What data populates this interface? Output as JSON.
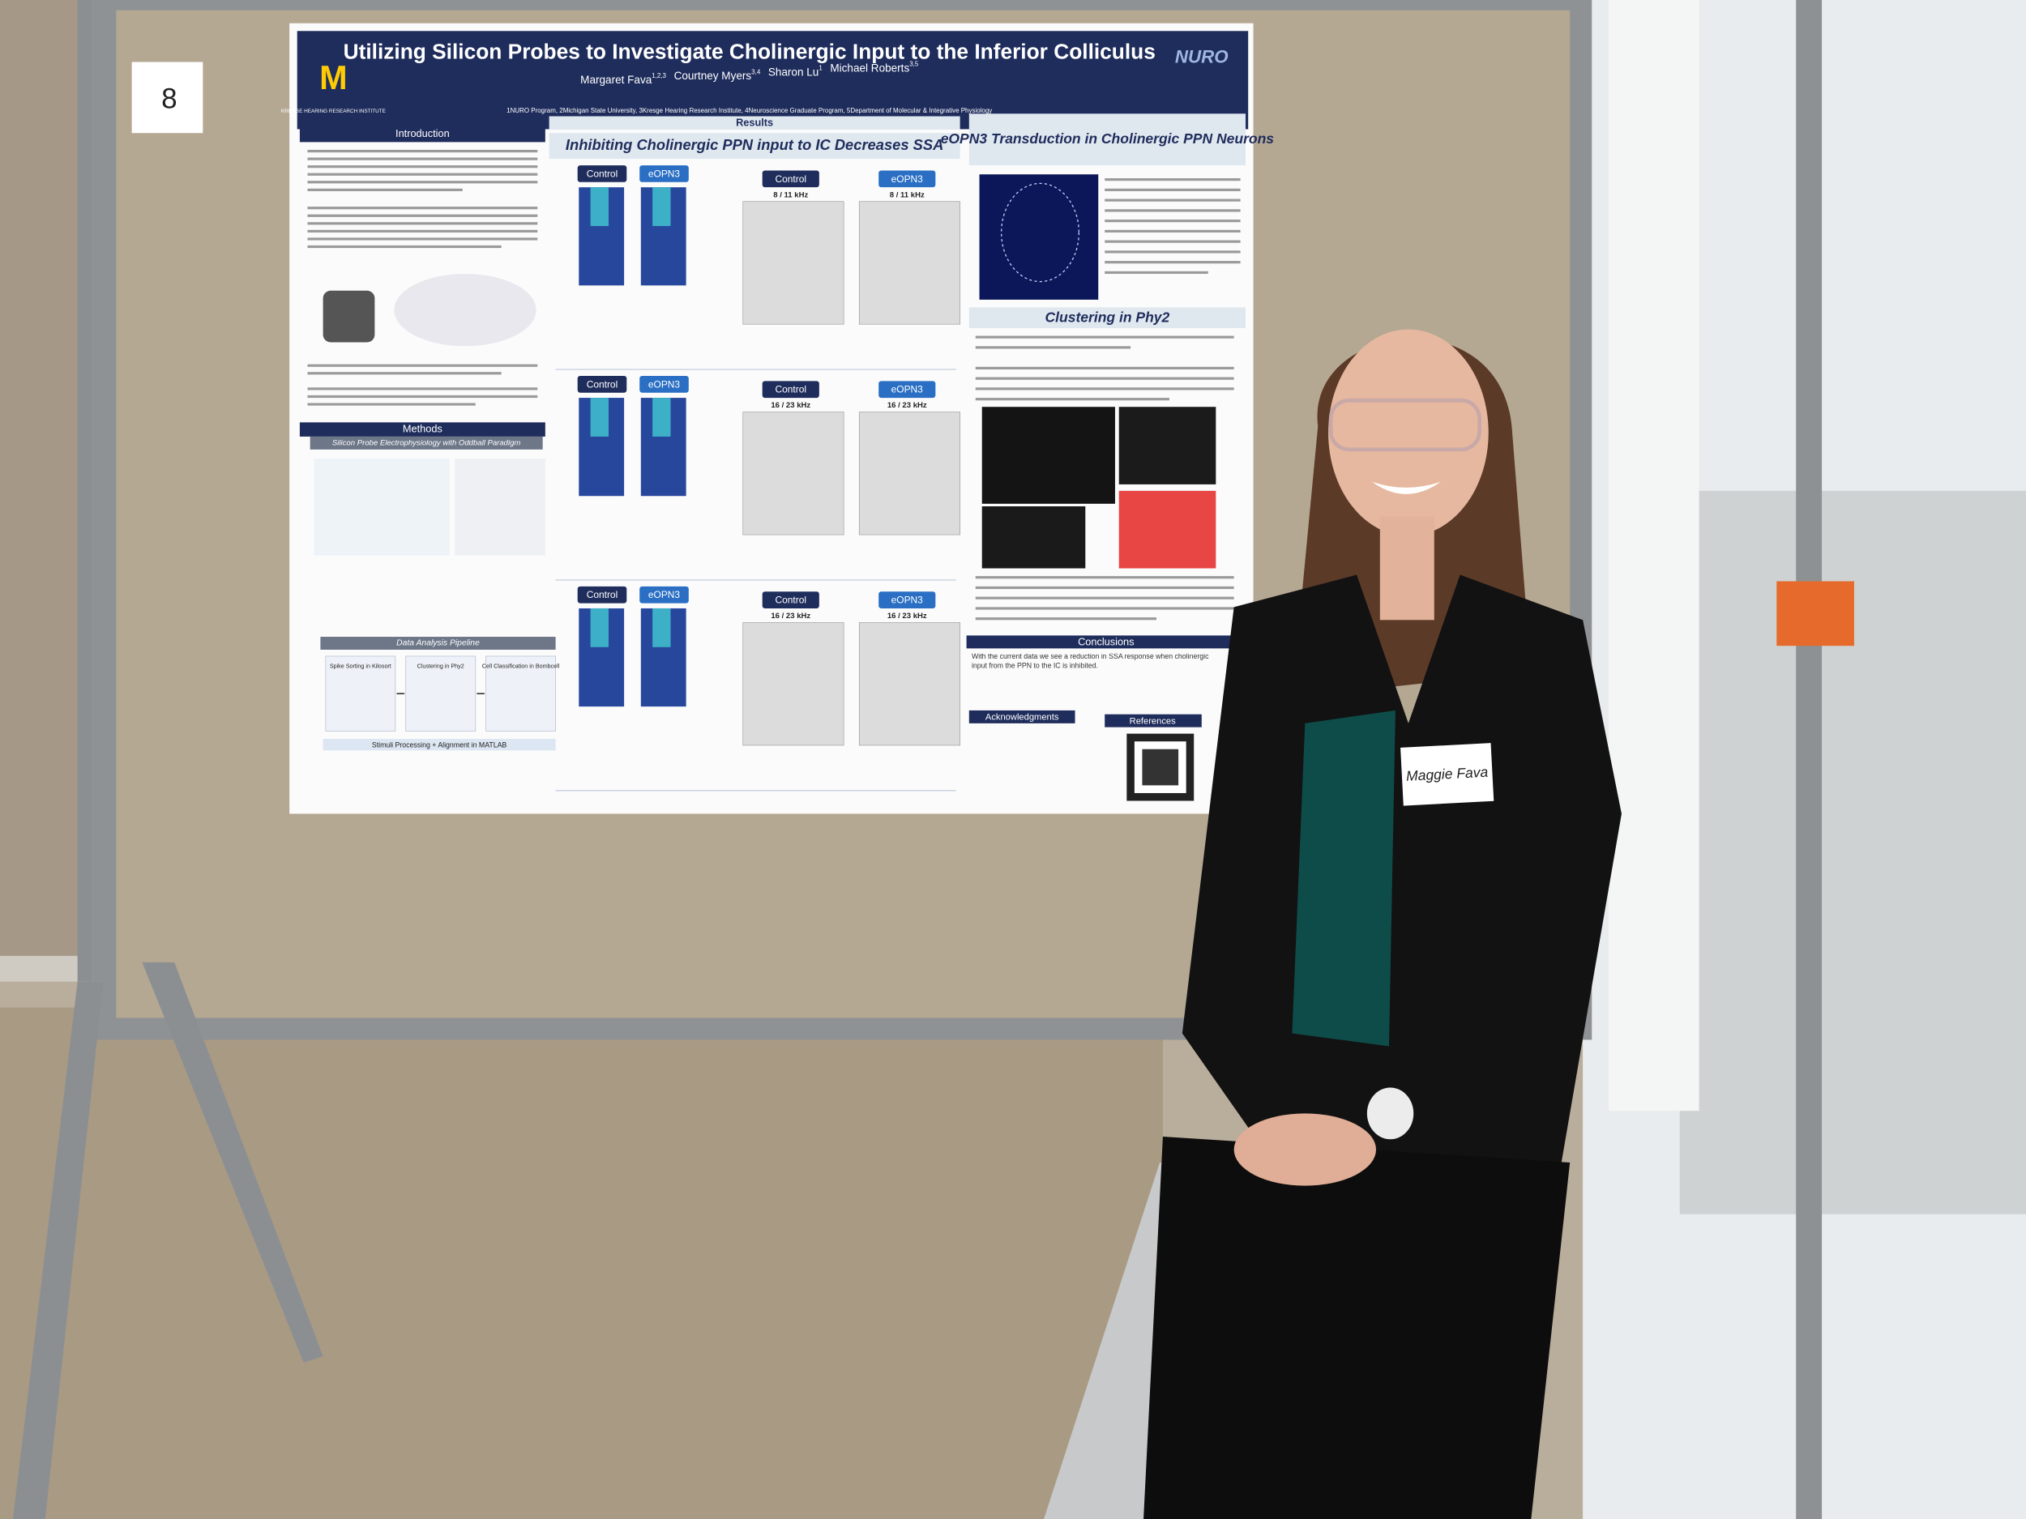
{
  "board_number": "8",
  "name_tag": "Maggie Fava",
  "poster": {
    "title": "Utilizing Silicon Probes to Investigate Cholinergic Input to the Inferior Colliculus",
    "logo_text": "KRESGE HEARING RESEARCH INSTITUTE",
    "program_logo": "NURO",
    "authors": [
      {
        "name": "Margaret Fava",
        "sup": "1,2,3"
      },
      {
        "name": "Courtney Myers",
        "sup": "3,4"
      },
      {
        "name": "Sharon Lu",
        "sup": "1"
      },
      {
        "name": "Michael Roberts",
        "sup": "3,5"
      }
    ],
    "affiliations": "1NURO Program, 2Michigan State University, 3Kresge Hearing Research Institute, 4Neuroscience Graduate Program, 5Department of Molecular & Integrative Physiology",
    "introduction": {
      "heading": "Introduction"
    },
    "methods": {
      "heading": "Methods",
      "subheading": "Silicon Probe Electrophysiology with Oddball Paradigm",
      "pipeline_heading": "Data Analysis Pipeline",
      "pipeline_steps": [
        "Spike Sorting in Kilosort",
        "Clustering in Phy2",
        "Cell Classification in Bombcell"
      ],
      "pipeline_footer": "Stimuli Processing + Alignment in MATLAB"
    },
    "results": {
      "heading": "Results",
      "subheading": "Inhibiting Cholinergic PPN input to IC Decreases SSA",
      "rows": [
        {
          "left": [
            "Control",
            "eOPN3"
          ],
          "right": [
            {
              "label": "Control",
              "freq": "8 / 11 kHz"
            },
            {
              "label": "eOPN3",
              "freq": "8 / 11 kHz"
            }
          ]
        },
        {
          "left": [
            "Control",
            "eOPN3"
          ],
          "right": [
            {
              "label": "Control",
              "freq": "16 / 23 kHz"
            },
            {
              "label": "eOPN3",
              "freq": "16 / 23 kHz"
            }
          ]
        },
        {
          "left": [
            "Control",
            "eOPN3"
          ],
          "right": [
            {
              "label": "Control",
              "freq": "16 / 23 kHz"
            },
            {
              "label": "eOPN3",
              "freq": "16 / 23 kHz"
            }
          ]
        }
      ]
    },
    "transduction_heading": "eOPN3 Transduction in Cholinergic PPN Neurons",
    "clustering_heading": "Clustering in Phy2",
    "conclusions": {
      "heading": "Conclusions",
      "text": "With the current data we see a reduction in SSA response when cholinergic input from the PPN to the IC is inhibited."
    },
    "acknowledgments_heading": "Acknowledgments",
    "references_heading": "References"
  }
}
